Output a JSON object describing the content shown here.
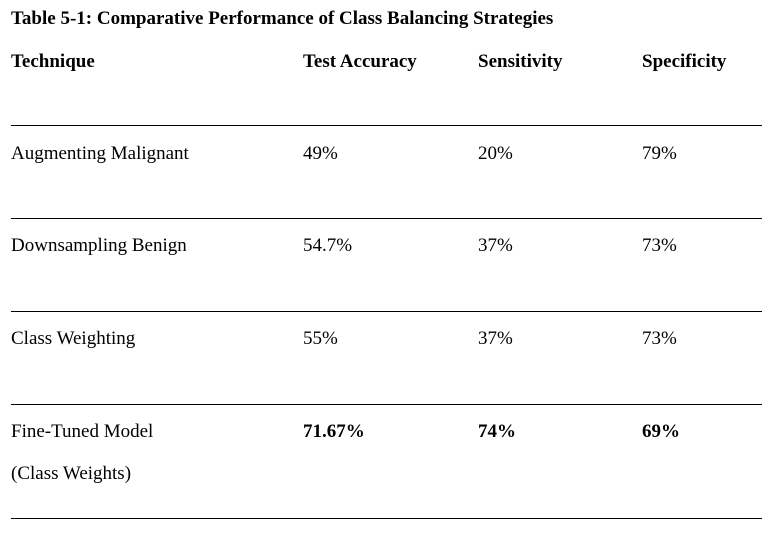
{
  "table": {
    "caption": "Table 5-1: Comparative Performance of Class Balancing Strategies",
    "headers": [
      "Technique",
      "Test Accuracy",
      "Sensitivity",
      "Specificity"
    ],
    "rows": [
      {
        "technique": "Augmenting Malignant",
        "accuracy": "49%",
        "sensitivity": "20%",
        "specificity": "79%"
      },
      {
        "technique": "Downsampling Benign",
        "accuracy": "54.7%",
        "sensitivity": "37%",
        "specificity": "73%"
      },
      {
        "technique": "Class Weighting",
        "accuracy": "55%",
        "sensitivity": "37%",
        "specificity": "73%"
      },
      {
        "technique": "Fine-Tuned Model",
        "technique_line2": "(Class Weights)",
        "accuracy": "71.67%",
        "sensitivity": "74%",
        "specificity": "69%"
      }
    ]
  }
}
